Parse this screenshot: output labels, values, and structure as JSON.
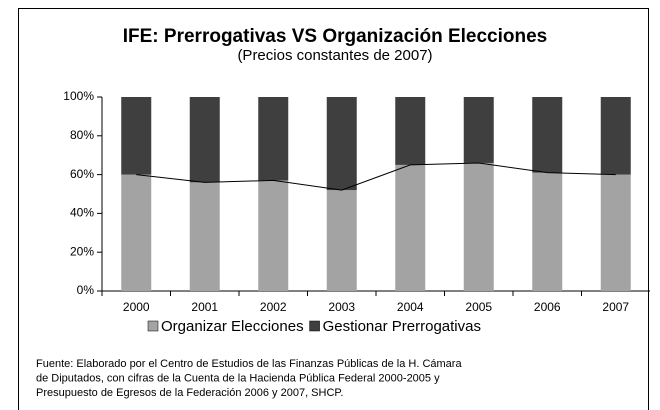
{
  "chart_data": {
    "type": "bar",
    "stacked": true,
    "title": "IFE: Prerrogativas VS Organización Elecciones",
    "subtitle": "(Precios constantes de 2007)",
    "categories": [
      "2000",
      "2001",
      "2002",
      "2003",
      "2004",
      "2005",
      "2006",
      "2007"
    ],
    "series": [
      {
        "name": "Organizar Elecciones",
        "color": "#a3a3a3",
        "values": [
          60,
          56,
          57,
          52,
          65,
          66,
          61,
          60
        ]
      },
      {
        "name": "Gestionar Prerrogativas",
        "color": "#3f3f3f",
        "values": [
          40,
          44,
          43,
          48,
          35,
          34,
          39,
          40
        ]
      }
    ],
    "ylim": [
      0,
      100
    ],
    "yticks": [
      {
        "value": 0,
        "label": "0%"
      },
      {
        "value": 20,
        "label": "20%"
      },
      {
        "value": 40,
        "label": "40%"
      },
      {
        "value": 60,
        "label": "60%"
      },
      {
        "value": 80,
        "label": "80%"
      },
      {
        "value": 100,
        "label": "100%"
      }
    ],
    "legend": "bottom",
    "source": [
      "Fuente:  Elaborado  por el Centro de  Estudios de las  Finanzas  Públicas de la H.  Cámara",
      "de Diputados, con cifras de la Cuenta de la Hacienda Pública Federal 2000-2005 y",
      "Presupuesto de Egresos de la Federación 2006 y 2007, SHCP."
    ]
  }
}
